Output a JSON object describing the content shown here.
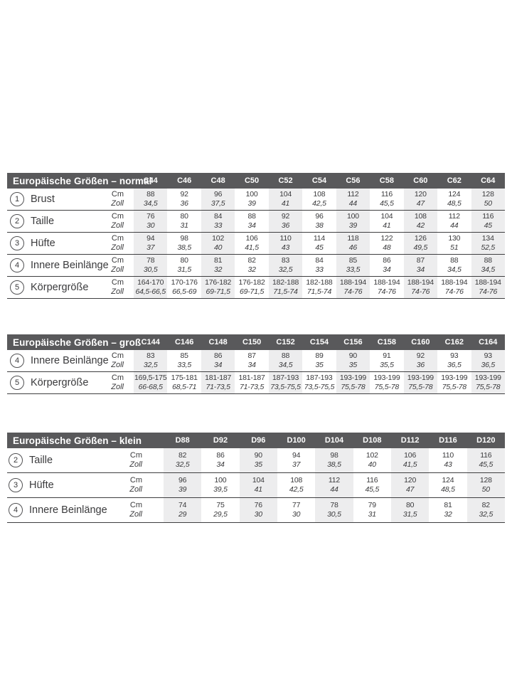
{
  "colors": {
    "header_bar_bg": "#59595b",
    "header_bar_text": "#ffffff",
    "column_shade": "#ededee",
    "body_text": "#3a3a3c",
    "divider_line": "#3e3e40"
  },
  "units": {
    "cm": "Cm",
    "zoll": "Zoll"
  },
  "tables": [
    {
      "slug": "normal",
      "title": "Europäische Größen – normal",
      "columns": [
        "C44",
        "C46",
        "C48",
        "C50",
        "C52",
        "C54",
        "C56",
        "C58",
        "C60",
        "C62",
        "C64"
      ],
      "rows": [
        {
          "num": "1",
          "label": "Brust",
          "cm": [
            "88",
            "92",
            "96",
            "100",
            "104",
            "108",
            "112",
            "116",
            "120",
            "124",
            "128"
          ],
          "zoll": [
            "34,5",
            "36",
            "37,5",
            "39",
            "41",
            "42,5",
            "44",
            "45,5",
            "47",
            "48,5",
            "50"
          ]
        },
        {
          "num": "2",
          "label": "Taille",
          "cm": [
            "76",
            "80",
            "84",
            "88",
            "92",
            "96",
            "100",
            "104",
            "108",
            "112",
            "116"
          ],
          "zoll": [
            "30",
            "31",
            "33",
            "34",
            "36",
            "38",
            "39",
            "41",
            "42",
            "44",
            "45"
          ]
        },
        {
          "num": "3",
          "label": "Hüfte",
          "cm": [
            "94",
            "98",
            "102",
            "106",
            "110",
            "114",
            "118",
            "122",
            "126",
            "130",
            "134"
          ],
          "zoll": [
            "37",
            "38,5",
            "40",
            "41,5",
            "43",
            "45",
            "46",
            "48",
            "49,5",
            "51",
            "52,5"
          ]
        },
        {
          "num": "4",
          "label": "Innere Beinlänge",
          "cm": [
            "78",
            "80",
            "81",
            "82",
            "83",
            "84",
            "85",
            "86",
            "87",
            "88",
            "88"
          ],
          "zoll": [
            "30,5",
            "31,5",
            "32",
            "32",
            "32,5",
            "33",
            "33,5",
            "34",
            "34",
            "34,5",
            "34,5"
          ]
        },
        {
          "num": "5",
          "label": "Körpergröße",
          "cm": [
            "164-170",
            "170-176",
            "176-182",
            "176-182",
            "182-188",
            "182-188",
            "188-194",
            "188-194",
            "188-194",
            "188-194",
            "188-194"
          ],
          "zoll": [
            "64,5-66,5",
            "66,5-69",
            "69-71,5",
            "69-71,5",
            "71,5-74",
            "71,5-74",
            "74-76",
            "74-76",
            "74-76",
            "74-76",
            "74-76"
          ]
        }
      ]
    },
    {
      "slug": "gross",
      "title": "Europäische Größen – groß",
      "columns": [
        "C144",
        "C146",
        "C148",
        "C150",
        "C152",
        "C154",
        "C156",
        "C158",
        "C160",
        "C162",
        "C164"
      ],
      "rows": [
        {
          "num": "4",
          "label": "Innere Beinlänge",
          "cm": [
            "83",
            "85",
            "86",
            "87",
            "88",
            "89",
            "90",
            "91",
            "92",
            "93",
            "93"
          ],
          "zoll": [
            "32,5",
            "33,5",
            "34",
            "34",
            "34,5",
            "35",
            "35",
            "35,5",
            "36",
            "36,5",
            "36,5"
          ]
        },
        {
          "num": "5",
          "label": "Körpergröße",
          "cm": [
            "169,5-175",
            "175-181",
            "181-187",
            "181-187",
            "187-193",
            "187-193",
            "193-199",
            "193-199",
            "193-199",
            "193-199",
            "193-199"
          ],
          "zoll": [
            "66-68,5",
            "68,5-71",
            "71-73,5",
            "71-73,5",
            "73,5-75,5",
            "73,5-75,5",
            "75,5-78",
            "75,5-78",
            "75,5-78",
            "75,5-78",
            "75,5-78"
          ]
        }
      ]
    },
    {
      "slug": "klein",
      "title": "Europäische Größen – klein",
      "columns": [
        "D88",
        "D92",
        "D96",
        "D100",
        "D104",
        "D108",
        "D112",
        "D116",
        "D120"
      ],
      "rows": [
        {
          "num": "2",
          "label": "Taille",
          "cm": [
            "82",
            "86",
            "90",
            "94",
            "98",
            "102",
            "106",
            "110",
            "116"
          ],
          "zoll": [
            "32,5",
            "34",
            "35",
            "37",
            "38,5",
            "40",
            "41,5",
            "43",
            "45,5"
          ]
        },
        {
          "num": "3",
          "label": "Hüfte",
          "cm": [
            "96",
            "100",
            "104",
            "108",
            "112",
            "116",
            "120",
            "124",
            "128"
          ],
          "zoll": [
            "39",
            "39,5",
            "41",
            "42,5",
            "44",
            "45,5",
            "47",
            "48,5",
            "50"
          ]
        },
        {
          "num": "4",
          "label": "Innere Beinlänge",
          "cm": [
            "74",
            "75",
            "76",
            "77",
            "78",
            "79",
            "80",
            "81",
            "82"
          ],
          "zoll": [
            "29",
            "29,5",
            "30",
            "30",
            "30,5",
            "31",
            "31,5",
            "32",
            "32,5"
          ]
        }
      ]
    }
  ]
}
